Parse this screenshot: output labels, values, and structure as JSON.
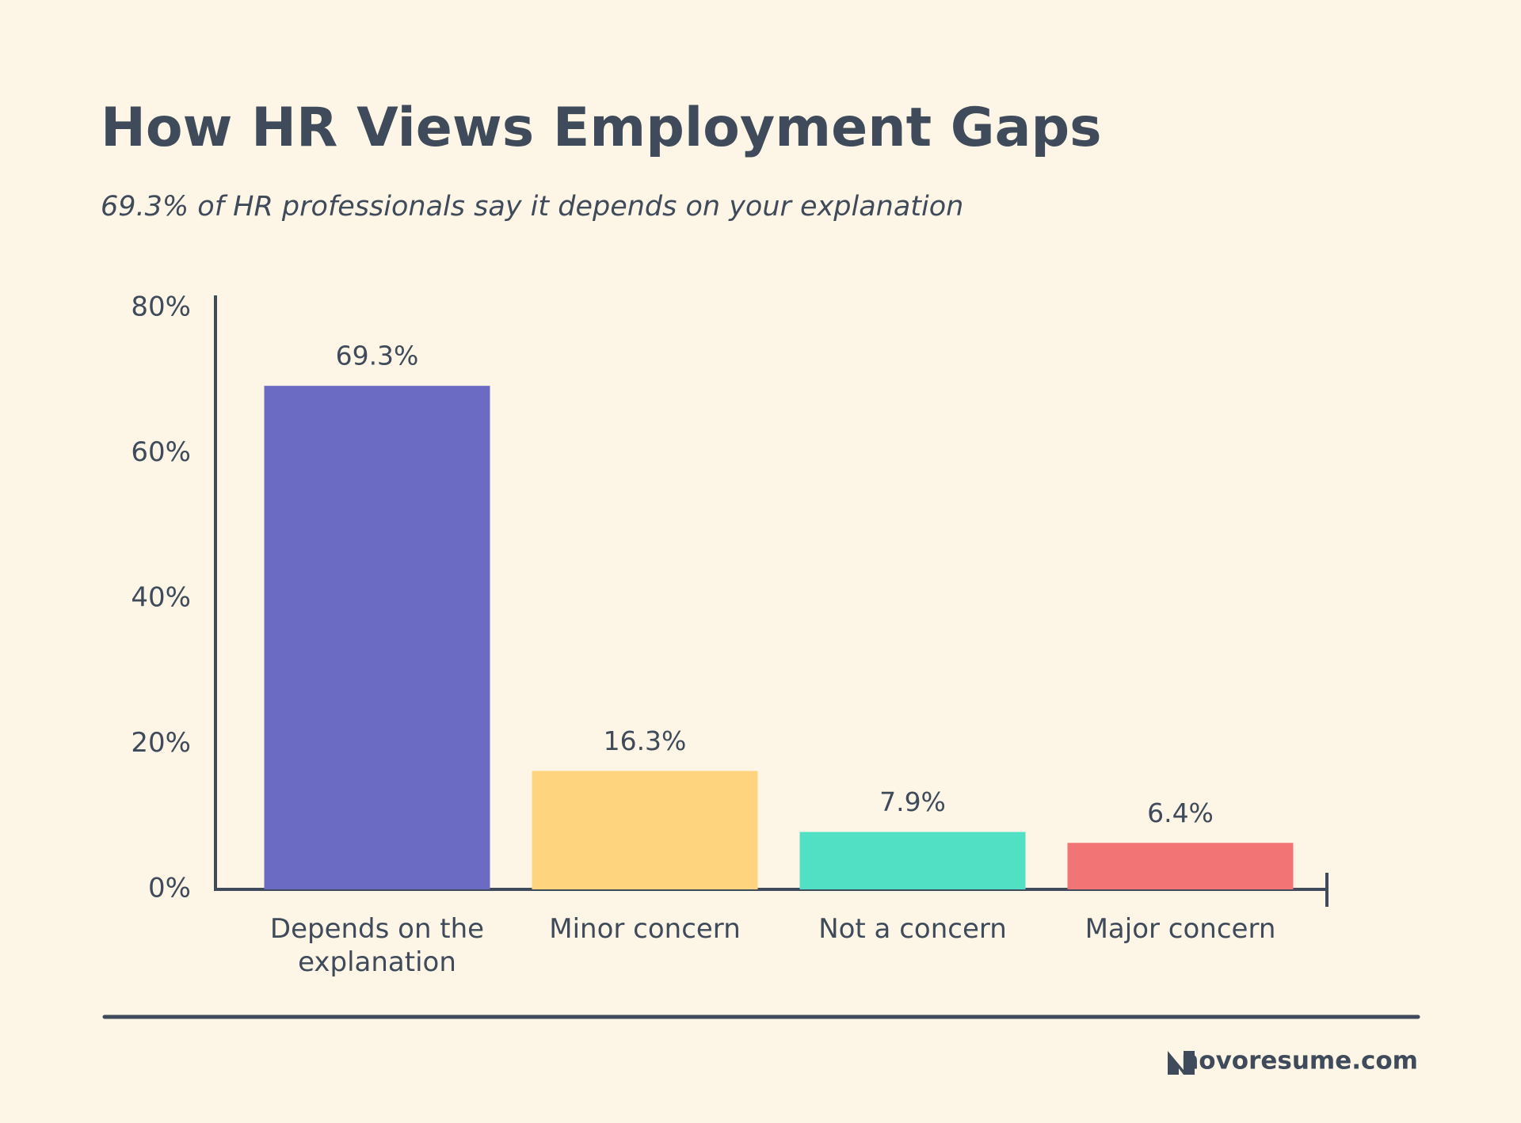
{
  "chart_data": {
    "type": "bar",
    "title": "How HR Views Employment Gaps",
    "subtitle": "69.3% of HR professionals say it depends on your explanation",
    "categories": [
      "Depends on the explanation",
      "Minor concern",
      "Not a concern",
      "Major concern"
    ],
    "values": [
      69.3,
      16.3,
      7.9,
      6.4
    ],
    "value_labels": [
      "69.3%",
      "16.3%",
      "7.9%",
      "6.4%"
    ],
    "colors": [
      "#6c6bc4",
      "#ffd47f",
      "#52e0c4",
      "#f27474"
    ],
    "ylim": [
      0,
      80
    ],
    "yticks": [
      {
        "value": 0,
        "label": "0%"
      },
      {
        "value": 20,
        "label": "20%"
      },
      {
        "value": 40,
        "label": "40%"
      },
      {
        "value": 60,
        "label": "60%"
      },
      {
        "value": 80,
        "label": "80%"
      }
    ],
    "grid": false,
    "source": "novoresume.com"
  }
}
